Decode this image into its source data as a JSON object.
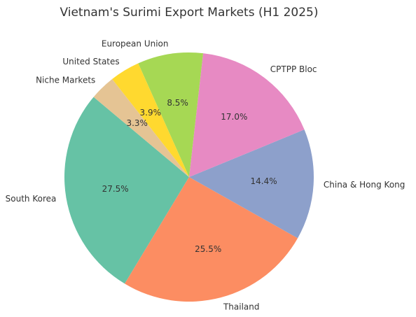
{
  "chart_data": {
    "type": "pie",
    "title": "Vietnam's Surimi Export Markets (H1 2025)",
    "categories": [
      "South Korea",
      "Thailand",
      "China & Hong Kong",
      "CPTPP Bloc",
      "European Union",
      "United States",
      "Niche Markets"
    ],
    "values": [
      27.5,
      25.5,
      14.4,
      17.0,
      8.5,
      3.9,
      3.3
    ],
    "value_labels": [
      "27.5%",
      "25.5%",
      "14.4%",
      "17.0%",
      "8.5%",
      "3.9%",
      "3.3%"
    ],
    "colors": [
      "#66c2a5",
      "#fc8d62",
      "#8da0cb",
      "#e78ac3",
      "#a6d854",
      "#ffd92f",
      "#e5c494"
    ]
  }
}
